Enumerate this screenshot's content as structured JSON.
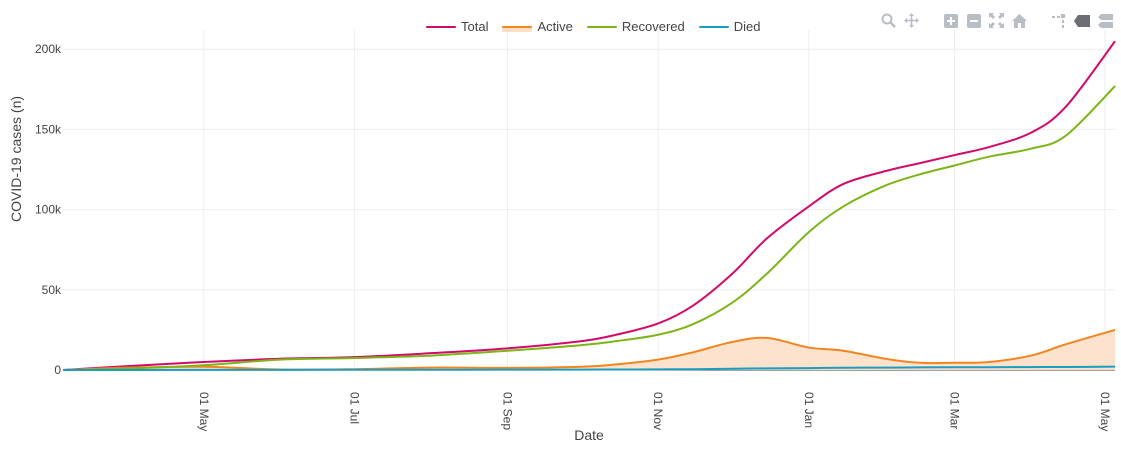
{
  "legend": {
    "items": [
      {
        "name": "Total",
        "color": "#d10a6b"
      },
      {
        "name": "Active",
        "color": "#f28520"
      },
      {
        "name": "Recovered",
        "color": "#7cb518"
      },
      {
        "name": "Died",
        "color": "#1b9cc1"
      }
    ]
  },
  "modebar": {
    "icons": [
      "zoom-icon",
      "pan-icon",
      "zoom-in-icon",
      "zoom-out-icon",
      "autoscale-icon",
      "reset-axes-icon",
      "spike-lines-icon",
      "hover-closest-icon",
      "hover-compare-icon"
    ]
  },
  "chart_data": {
    "type": "line",
    "xlabel": "Date",
    "ylabel": "COVID-19 cases (n)",
    "x_tick_labels": [
      "01 May",
      "01 Jul",
      "01 Sep",
      "01 Nov",
      "01 Jan",
      "01 Mar",
      "01 May"
    ],
    "x_tick_dates": [
      "2020-05-01",
      "2020-07-01",
      "2020-09-01",
      "2020-11-01",
      "2021-01-01",
      "2021-03-01",
      "2021-05-01"
    ],
    "xlim": [
      "2020-03-05",
      "2021-05-05"
    ],
    "y_tick_labels": [
      "0",
      "50k",
      "100k",
      "150k",
      "200k"
    ],
    "y_ticks": [
      0,
      50000,
      100000,
      150000,
      200000
    ],
    "ylim": [
      0,
      212000
    ],
    "grid": true,
    "legend_position": "top-center",
    "x": [
      "2020-03-05",
      "2020-04-01",
      "2020-05-01",
      "2020-06-01",
      "2020-07-01",
      "2020-08-01",
      "2020-09-01",
      "2020-10-01",
      "2020-10-15",
      "2020-11-01",
      "2020-11-15",
      "2020-12-01",
      "2020-12-15",
      "2021-01-01",
      "2021-01-15",
      "2021-02-01",
      "2021-02-15",
      "2021-03-01",
      "2021-03-15",
      "2021-04-01",
      "2021-04-15",
      "2021-05-05"
    ],
    "series": [
      {
        "name": "Total",
        "color": "#d10a6b",
        "values": [
          0,
          2500,
          5000,
          7000,
          8000,
          10500,
          13500,
          18000,
          22000,
          29000,
          40000,
          60000,
          82000,
          102000,
          116000,
          124000,
          129000,
          134000,
          139000,
          148000,
          164000,
          205000
        ]
      },
      {
        "name": "Active",
        "color": "#f28520",
        "values": [
          0,
          1500,
          2000,
          300,
          500,
          1500,
          1300,
          2000,
          3500,
          6500,
          11000,
          17500,
          20000,
          14000,
          12000,
          7000,
          4500,
          4500,
          5000,
          9000,
          16000,
          25000
        ]
      },
      {
        "name": "Recovered",
        "color": "#7cb518",
        "values": [
          0,
          1000,
          3000,
          6500,
          7500,
          9000,
          12000,
          15500,
          18000,
          22000,
          28500,
          42000,
          60000,
          86000,
          102000,
          115000,
          122000,
          127500,
          133000,
          138000,
          146000,
          177000
        ]
      },
      {
        "name": "Died",
        "color": "#1b9cc1",
        "values": [
          0,
          0,
          100,
          100,
          150,
          150,
          200,
          250,
          300,
          400,
          500,
          800,
          1000,
          1200,
          1400,
          1500,
          1600,
          1700,
          1750,
          1800,
          1900,
          2100
        ]
      }
    ]
  }
}
